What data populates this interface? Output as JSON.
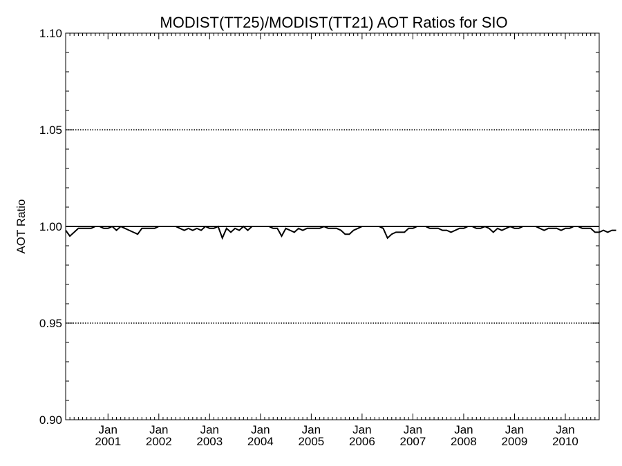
{
  "chart_data": {
    "type": "line",
    "title": "MODIST(TT25)/MODIST(TT21)  AOT Ratios for SIO",
    "xlabel": "",
    "ylabel": "AOT Ratio",
    "ylim": [
      0.9,
      1.1
    ],
    "xlim": [
      "2000-03",
      "2010-09"
    ],
    "y_ticks": [
      "0.90",
      "0.95",
      "1.00",
      "1.05",
      "1.10"
    ],
    "x_tick_labels": [
      {
        "month": "Jan",
        "year": "2001",
        "x": "2001-01"
      },
      {
        "month": "Jan",
        "year": "2002",
        "x": "2002-01"
      },
      {
        "month": "Jan",
        "year": "2003",
        "x": "2003-01"
      },
      {
        "month": "Jan",
        "year": "2004",
        "x": "2004-01"
      },
      {
        "month": "Jan",
        "year": "2005",
        "x": "2005-01"
      },
      {
        "month": "Jan",
        "year": "2006",
        "x": "2006-01"
      },
      {
        "month": "Jan",
        "year": "2007",
        "x": "2007-01"
      },
      {
        "month": "Jan",
        "year": "2008",
        "x": "2008-01"
      },
      {
        "month": "Jan",
        "year": "2009",
        "x": "2009-01"
      },
      {
        "month": "Jan",
        "year": "2010",
        "x": "2010-01"
      }
    ],
    "reference_lines": [
      {
        "y": 1.0,
        "style": "solid"
      },
      {
        "y": 1.05,
        "style": "dotted"
      },
      {
        "y": 0.95,
        "style": "dotted"
      }
    ],
    "grid": false,
    "series": [
      {
        "start": "2000-03",
        "step": "month",
        "values": [
          0.998,
          0.995,
          0.997,
          0.999,
          0.999,
          0.999,
          0.999,
          1.0,
          1.0,
          0.999,
          0.999,
          1.0,
          0.998,
          1.0,
          0.999,
          0.998,
          0.997,
          0.996,
          0.999,
          0.999,
          0.999,
          0.999,
          1.0,
          1.0,
          1.0,
          1.0,
          1.0,
          0.999,
          0.998,
          0.999,
          0.998,
          0.999,
          0.998,
          1.0,
          0.999,
          0.999,
          1.0,
          0.994,
          0.999,
          0.997,
          0.999,
          0.998,
          1.0,
          0.998,
          1.0,
          1.0,
          1.0,
          1.0,
          1.0,
          0.999,
          0.999,
          0.995,
          0.999,
          0.998,
          0.997,
          0.999,
          0.998,
          0.999,
          0.999,
          0.999,
          0.999,
          1.0,
          0.999,
          0.999,
          0.999,
          0.998,
          0.996,
          0.996,
          0.998,
          0.999,
          1.0,
          1.0,
          1.0,
          1.0,
          1.0,
          0.999,
          0.994,
          0.996,
          0.997,
          0.997,
          0.997,
          0.999,
          0.999,
          1.0,
          1.0,
          1.0,
          0.999,
          0.999,
          0.999,
          0.998,
          0.998,
          0.997,
          0.998,
          0.999,
          0.999,
          1.0,
          1.0,
          0.999,
          0.999,
          1.0,
          0.999,
          0.997,
          0.999,
          0.998,
          0.999,
          1.0,
          0.999,
          0.999,
          1.0,
          1.0,
          1.0,
          1.0,
          0.999,
          0.998,
          0.999,
          0.999,
          0.999,
          0.998,
          0.999,
          0.999,
          1.0,
          1.0,
          0.999,
          0.999,
          0.999,
          0.997,
          0.997,
          0.998,
          0.997,
          0.998,
          0.998
        ]
      }
    ]
  }
}
